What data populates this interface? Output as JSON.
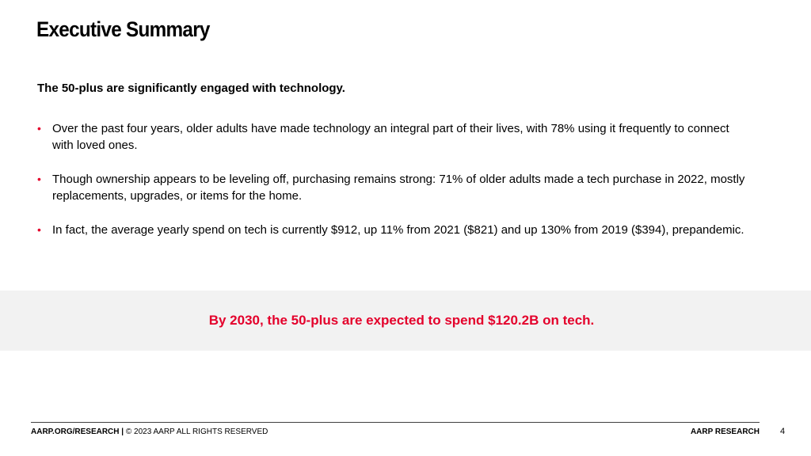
{
  "slide": {
    "title": "Executive Summary",
    "lead": "The 50-plus are significantly engaged with technology.",
    "bullets": [
      "Over the past four years, older adults have made technology an integral part of their lives, with 78% using it frequently to connect with loved ones.",
      "Though ownership appears to be leveling off, purchasing remains strong: 71% of older adults made a tech purchase in 2022, mostly replacements, upgrades, or items for the home.",
      "In fact, the average yearly spend on tech is currently $912, up 11% from 2021 ($821) and up 130% from 2019 ($394), prepandemic."
    ],
    "bullet_glyph": "•",
    "callout": "By 2030, the 50-plus are expected to spend $120.2B on tech."
  },
  "footer": {
    "site": "AARP.ORG/RESEARCH",
    "separator": " | ",
    "copyright": "© 2023 AARP ALL RIGHTS RESERVED",
    "brand": "AARP RESEARCH",
    "page_number": "4"
  },
  "colors": {
    "accent": "#e4002b",
    "band": "#f2f2f2"
  }
}
